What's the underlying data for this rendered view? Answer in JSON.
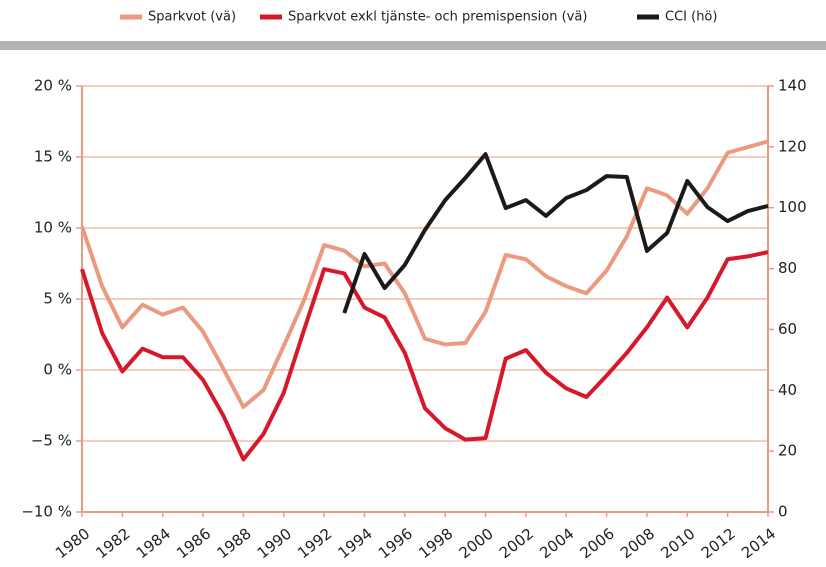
{
  "chart_data": {
    "type": "line",
    "x": [
      1980,
      1981,
      1982,
      1983,
      1984,
      1985,
      1986,
      1987,
      1988,
      1989,
      1990,
      1991,
      1992,
      1993,
      1994,
      1995,
      1996,
      1997,
      1998,
      1999,
      2000,
      2001,
      2002,
      2003,
      2004,
      2005,
      2006,
      2007,
      2008,
      2009,
      2010,
      2011,
      2012,
      2013,
      2014
    ],
    "xlim": [
      1980,
      2014
    ],
    "xticks": [
      1980,
      1982,
      1984,
      1986,
      1988,
      1990,
      1992,
      1994,
      1996,
      1998,
      2000,
      2002,
      2004,
      2006,
      2008,
      2010,
      2012,
      2014
    ],
    "ylim": [
      -10,
      20
    ],
    "yticks": [
      {
        "value": -10,
        "label": "−10 %"
      },
      {
        "value": -5,
        "label": "−5 %"
      },
      {
        "value": 0,
        "label": "0 %"
      },
      {
        "value": 5,
        "label": "5 %"
      },
      {
        "value": 10,
        "label": "10 %"
      },
      {
        "value": 15,
        "label": "15 %"
      },
      {
        "value": 20,
        "label": "20 %"
      }
    ],
    "y2lim": [
      0,
      140
    ],
    "y2ticks": [
      0,
      20,
      40,
      60,
      80,
      100,
      120,
      140
    ],
    "grid": true,
    "legend": "top",
    "series": [
      {
        "name": "Sparkvot (vä)",
        "color": "#eb9a80",
        "values": [
          10.1,
          5.9,
          3.0,
          4.6,
          3.9,
          4.4,
          2.7,
          0.1,
          -2.6,
          -1.4,
          1.7,
          4.9,
          8.8,
          8.4,
          7.3,
          7.5,
          5.4,
          2.2,
          1.8,
          1.9,
          4.1,
          8.1,
          7.8,
          6.6,
          5.9,
          5.4,
          7.0,
          9.4,
          12.8,
          12.3,
          11.0,
          12.8,
          15.3,
          15.7,
          16.1
        ]
      },
      {
        "name": "Sparkvot exkl tjänste- och premispension (vä)",
        "color": "#d7182a",
        "values": [
          7.1,
          2.6,
          -0.1,
          1.5,
          0.9,
          0.9,
          -0.7,
          -3.2,
          -6.3,
          -4.5,
          -1.6,
          2.8,
          7.1,
          6.8,
          4.4,
          3.7,
          1.2,
          -2.7,
          -4.1,
          -4.9,
          -4.8,
          0.8,
          1.4,
          -0.2,
          -1.3,
          -1.9,
          -0.4,
          1.2,
          3.0,
          5.1,
          3.0,
          5.1,
          7.8,
          8.0,
          8.3
        ]
      },
      {
        "name": "CCI (hö)",
        "color": "#1a1a1a",
        "axis": "y2",
        "values": [
          null,
          null,
          null,
          null,
          null,
          null,
          null,
          null,
          null,
          null,
          null,
          null,
          null,
          65.4,
          84.8,
          73.6,
          81.2,
          92.7,
          102.5,
          109.8,
          117.6,
          99.9,
          102.5,
          97.3,
          103.2,
          105.8,
          110.4,
          110.1,
          85.8,
          91.7,
          108.8,
          100.2,
          95.6,
          98.9,
          100.6
        ]
      }
    ]
  }
}
